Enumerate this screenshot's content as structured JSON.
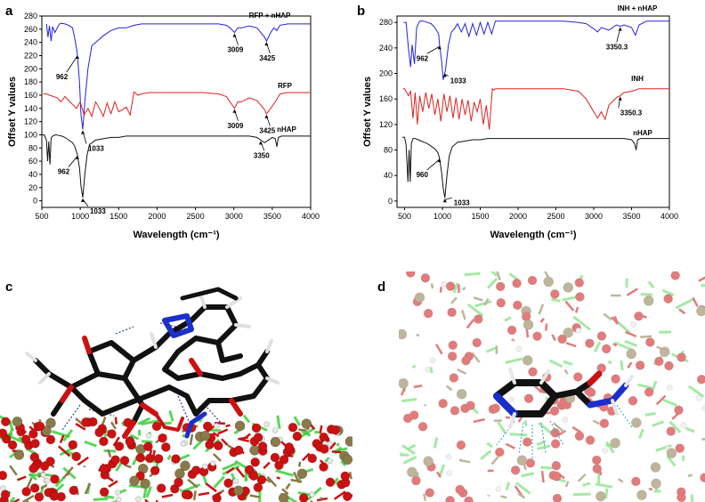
{
  "panels": {
    "a": {
      "letter": "a"
    },
    "b": {
      "letter": "b"
    },
    "c": {
      "letter": "c"
    },
    "d": {
      "letter": "d"
    }
  },
  "chart_data": [
    {
      "type": "line",
      "panel": "a",
      "xlabel": "Wavelength (cm⁻¹)",
      "ylabel": "Offset Y values",
      "xlim": [
        500,
        4000
      ],
      "ylim": [
        -10,
        280
      ],
      "xticks": [
        500,
        1000,
        1500,
        2000,
        2500,
        3000,
        3500,
        4000
      ],
      "yticks": [
        0,
        20,
        40,
        60,
        80,
        100,
        120,
        140,
        160,
        180,
        200,
        220,
        240,
        260,
        280
      ],
      "series": [
        {
          "name": "RFP + nHAP",
          "color": "#2222dd",
          "x": [
            560,
            580,
            600,
            620,
            640,
            670,
            700,
            730,
            760,
            800,
            850,
            900,
            930,
            960,
            990,
            1010,
            1033,
            1060,
            1100,
            1150,
            1200,
            1300,
            1400,
            1500,
            1600,
            1700,
            1800,
            1900,
            2000,
            2200,
            2400,
            2600,
            2800,
            2900,
            2950,
            3009,
            3050,
            3100,
            3200,
            3300,
            3400,
            3425,
            3480,
            3520,
            3560,
            3600,
            3700,
            3800,
            3900,
            4000
          ],
          "y": [
            268,
            248,
            265,
            242,
            264,
            255,
            262,
            268,
            269,
            268,
            266,
            262,
            245,
            225,
            180,
            130,
            108,
            150,
            200,
            235,
            240,
            250,
            258,
            262,
            262,
            266,
            268,
            268,
            268,
            268,
            268,
            268,
            268,
            266,
            262,
            255,
            262,
            262,
            265,
            262,
            248,
            242,
            255,
            262,
            258,
            266,
            268,
            268,
            268,
            268
          ]
        },
        {
          "name": "RFP",
          "color": "#dd2222",
          "x": [
            520,
            560,
            600,
            650,
            700,
            750,
            800,
            850,
            900,
            950,
            1000,
            1050,
            1100,
            1150,
            1200,
            1250,
            1300,
            1350,
            1400,
            1450,
            1500,
            1550,
            1600,
            1650,
            1700,
            1750,
            1800,
            1900,
            2000,
            2200,
            2400,
            2600,
            2800,
            2900,
            2950,
            3009,
            3050,
            3100,
            3200,
            3300,
            3400,
            3425,
            3480,
            3550,
            3600,
            3700,
            3800,
            4000
          ],
          "y": [
            162,
            162,
            160,
            158,
            156,
            150,
            158,
            152,
            146,
            140,
            150,
            130,
            140,
            128,
            150,
            140,
            128,
            148,
            132,
            150,
            135,
            138,
            142,
            130,
            165,
            160,
            162,
            164,
            164,
            164,
            164,
            164,
            162,
            158,
            150,
            140,
            150,
            150,
            156,
            152,
            138,
            132,
            140,
            152,
            162,
            164,
            164,
            164
          ]
        },
        {
          "name": "nHAP",
          "color": "#111111",
          "x": [
            500,
            530,
            560,
            575,
            590,
            605,
            620,
            640,
            680,
            720,
            760,
            800,
            850,
            900,
            930,
            962,
            990,
            1010,
            1033,
            1060,
            1090,
            1120,
            1200,
            1300,
            1400,
            1500,
            1600,
            1650,
            1700,
            1800,
            1900,
            2000,
            2200,
            2400,
            2640,
            2700,
            2800,
            3000,
            3200,
            3300,
            3350,
            3400,
            3450,
            3500,
            3540,
            3560,
            3580,
            3620,
            3700,
            3800,
            4000
          ],
          "y": [
            100,
            100,
            92,
            60,
            90,
            55,
            95,
            98,
            100,
            99,
            98,
            96,
            92,
            88,
            82,
            70,
            50,
            22,
            5,
            40,
            70,
            85,
            92,
            94,
            96,
            96,
            98,
            98,
            98,
            98,
            98,
            98,
            98,
            98,
            98,
            98,
            98,
            98,
            98,
            96,
            92,
            88,
            92,
            96,
            94,
            82,
            96,
            98,
            98,
            98,
            98
          ]
        }
      ],
      "legend": [
        {
          "text": "RFP + nHAP",
          "anchor_series": 0
        },
        {
          "text": "RFP",
          "anchor_series": 1
        },
        {
          "text": "nHAP",
          "anchor_series": 2
        }
      ],
      "annotations": [
        {
          "text": "962",
          "series": 0,
          "x": 962
        },
        {
          "text": "1033",
          "series": 0,
          "x": 1033
        },
        {
          "text": "3009",
          "series": 0,
          "x": 3009
        },
        {
          "text": "3425",
          "series": 0,
          "x": 3425
        },
        {
          "text": "3009",
          "series": 1,
          "x": 3009
        },
        {
          "text": "3425",
          "series": 1,
          "x": 3425
        },
        {
          "text": "3350",
          "series": 2,
          "x": 3350
        },
        {
          "text": "962",
          "series": 2,
          "x": 962
        },
        {
          "text": "1033",
          "series": 2,
          "x": 1033
        }
      ]
    },
    {
      "type": "line",
      "panel": "b",
      "xlabel": "Wavelength (cm⁻¹)",
      "ylabel": "Offset Y values",
      "xlim": [
        400,
        4000
      ],
      "ylim": [
        -10,
        290
      ],
      "xticks": [
        500,
        1000,
        1500,
        2000,
        2500,
        3000,
        3500,
        4000
      ],
      "yticks": [
        0,
        40,
        80,
        120,
        160,
        200,
        240,
        280
      ],
      "series": [
        {
          "name": "INH + nHAP",
          "color": "#2222dd",
          "x": [
            490,
            520,
            550,
            580,
            600,
            630,
            660,
            700,
            750,
            800,
            850,
            900,
            950,
            962,
            990,
            1010,
            1040,
            1080,
            1120,
            1160,
            1200,
            1250,
            1300,
            1350,
            1400,
            1450,
            1500,
            1550,
            1600,
            1650,
            1700,
            1800,
            2000,
            2200,
            2400,
            2600,
            2800,
            2900,
            3000,
            3050,
            3100,
            3200,
            3300,
            3350,
            3400,
            3500,
            3550,
            3600,
            3700,
            3800,
            4000
          ],
          "y": [
            280,
            280,
            240,
            210,
            245,
            215,
            272,
            282,
            282,
            280,
            278,
            272,
            262,
            245,
            220,
            190,
            205,
            245,
            265,
            270,
            278,
            265,
            278,
            258,
            278,
            260,
            280,
            262,
            280,
            262,
            282,
            282,
            282,
            282,
            282,
            282,
            280,
            278,
            270,
            265,
            272,
            268,
            276,
            274,
            276,
            272,
            260,
            276,
            282,
            282,
            282
          ]
        },
        {
          "name": "INH",
          "color": "#dd2222",
          "x": [
            480,
            500,
            550,
            580,
            610,
            640,
            670,
            700,
            740,
            780,
            820,
            860,
            900,
            940,
            980,
            1020,
            1060,
            1100,
            1140,
            1180,
            1220,
            1260,
            1300,
            1340,
            1380,
            1420,
            1460,
            1500,
            1540,
            1580,
            1620,
            1660,
            1680,
            1700,
            1800,
            2000,
            2200,
            2400,
            2600,
            2800,
            2900,
            3000,
            3050,
            3100,
            3150,
            3200,
            3300,
            3350,
            3400,
            3500,
            3600,
            3700,
            4000
          ],
          "y": [
            176,
            176,
            165,
            172,
            130,
            170,
            120,
            165,
            140,
            170,
            145,
            168,
            135,
            160,
            125,
            168,
            140,
            165,
            130,
            162,
            128,
            160,
            135,
            158,
            125,
            155,
            140,
            160,
            120,
            150,
            112,
            176,
            174,
            176,
            176,
            176,
            176,
            176,
            176,
            172,
            160,
            140,
            130,
            140,
            128,
            150,
            162,
            165,
            170,
            172,
            176,
            176,
            176
          ]
        },
        {
          "name": "nHAP",
          "color": "#111111",
          "x": [
            470,
            500,
            520,
            545,
            560,
            575,
            590,
            610,
            640,
            680,
            720,
            760,
            800,
            850,
            900,
            940,
            960,
            990,
            1010,
            1033,
            1060,
            1090,
            1130,
            1200,
            1300,
            1400,
            1500,
            1600,
            1650,
            1700,
            1800,
            1900,
            2000,
            2200,
            2400,
            2640,
            2700,
            2800,
            3000,
            3200,
            3300,
            3400,
            3500,
            3540,
            3560,
            3580,
            3620,
            3700,
            3800,
            4000
          ],
          "y": [
            100,
            100,
            88,
            30,
            80,
            30,
            90,
            98,
            98,
            96,
            94,
            92,
            90,
            86,
            82,
            76,
            68,
            45,
            20,
            5,
            40,
            70,
            85,
            92,
            94,
            96,
            96,
            98,
            98,
            98,
            98,
            98,
            98,
            98,
            98,
            98,
            98,
            98,
            98,
            98,
            98,
            98,
            96,
            90,
            80,
            96,
            98,
            98,
            98,
            98
          ]
        }
      ],
      "legend": [
        {
          "text": "INH + nHAP",
          "anchor_series": 0
        },
        {
          "text": "INH",
          "anchor_series": 1
        },
        {
          "text": "nHAP",
          "anchor_series": 2
        }
      ],
      "annotations": [
        {
          "text": "962",
          "series": 0,
          "x": 962
        },
        {
          "text": "1033",
          "series": 0,
          "x": 1033
        },
        {
          "text": "3350.3",
          "series": 0,
          "x": 3350
        },
        {
          "text": "3350.3",
          "series": 1,
          "x": 3350
        },
        {
          "text": "960",
          "series": 2,
          "x": 960
        },
        {
          "text": "1033",
          "series": 2,
          "x": 1033
        }
      ]
    }
  ],
  "colors": {
    "oxygen": "#cc1111",
    "phosphorus": "#8a7a4a",
    "calcium": "#33cc33",
    "nitrogen": "#1a2fcc",
    "carbon": "#111111",
    "hydrogen": "#e8e8e8",
    "hbond": "#2a3f9a"
  }
}
